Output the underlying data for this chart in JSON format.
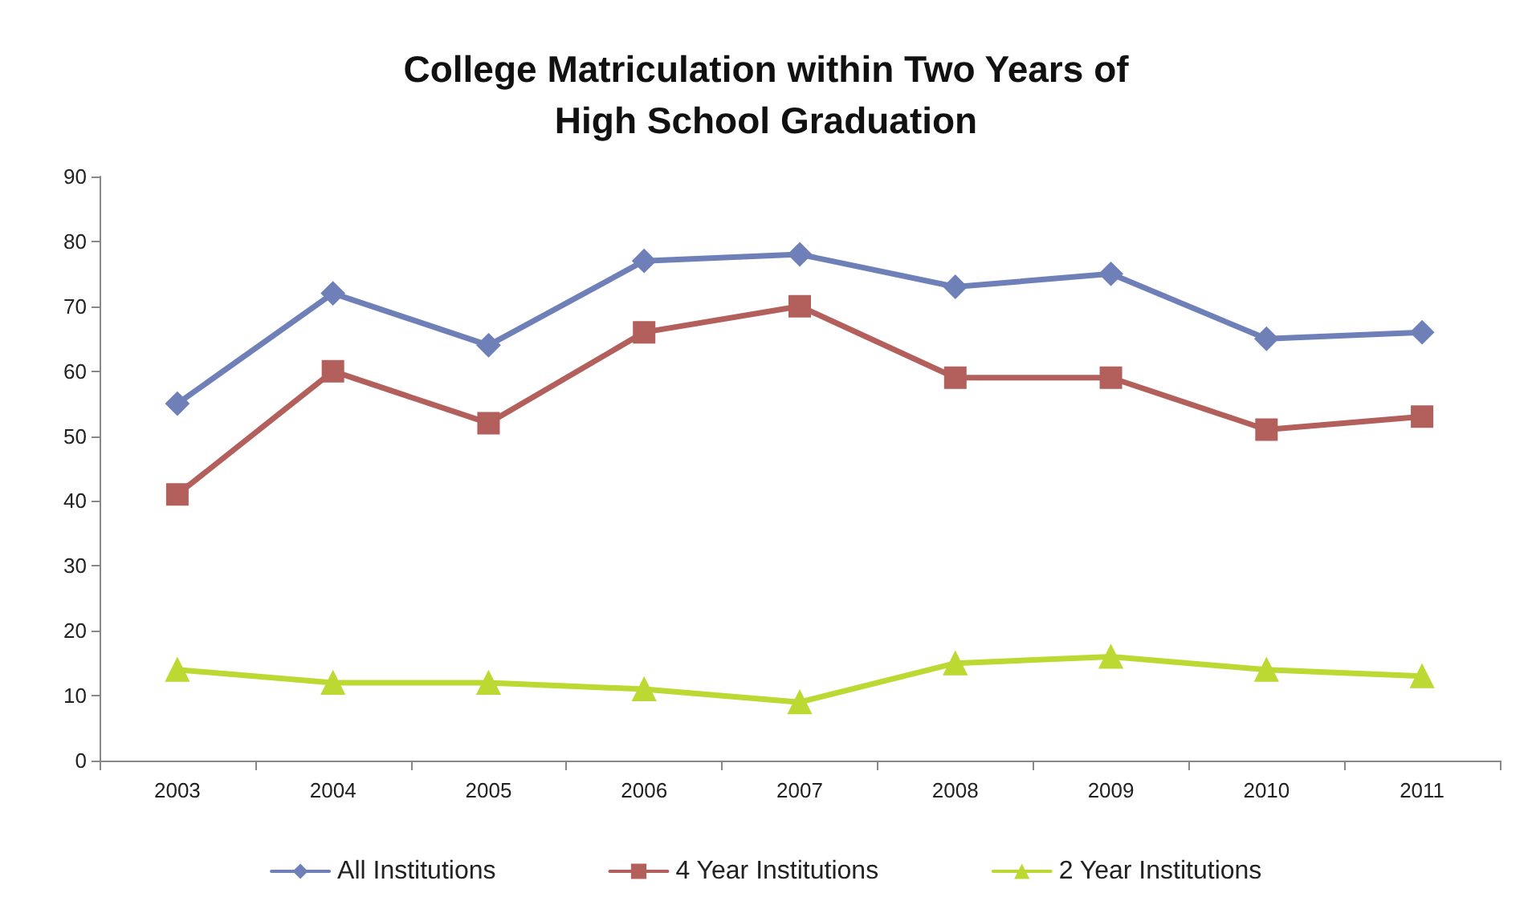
{
  "chart_data": {
    "type": "line",
    "title": "College Matriculation within Two Years of\nHigh School Graduation",
    "categories": [
      "2003",
      "2004",
      "2005",
      "2006",
      "2007",
      "2008",
      "2009",
      "2010",
      "2011"
    ],
    "series": [
      {
        "name": "All Institutions",
        "color": "#6f80b9",
        "marker": "diamond",
        "values": [
          55,
          72,
          64,
          77,
          78,
          73,
          75,
          65,
          66
        ]
      },
      {
        "name": "4 Year Institutions",
        "color": "#b35f5c",
        "marker": "square",
        "values": [
          41,
          60,
          52,
          66,
          70,
          59,
          59,
          51,
          53
        ]
      },
      {
        "name": "2 Year Institutions",
        "color": "#bcd933",
        "marker": "triangle",
        "values": [
          14,
          12,
          12,
          11,
          9,
          15,
          16,
          14,
          13
        ]
      }
    ],
    "ylim": [
      0,
      90
    ],
    "yticks": [
      0,
      10,
      20,
      30,
      40,
      50,
      60,
      70,
      80,
      90
    ],
    "grid": false,
    "legend": "bottom"
  }
}
